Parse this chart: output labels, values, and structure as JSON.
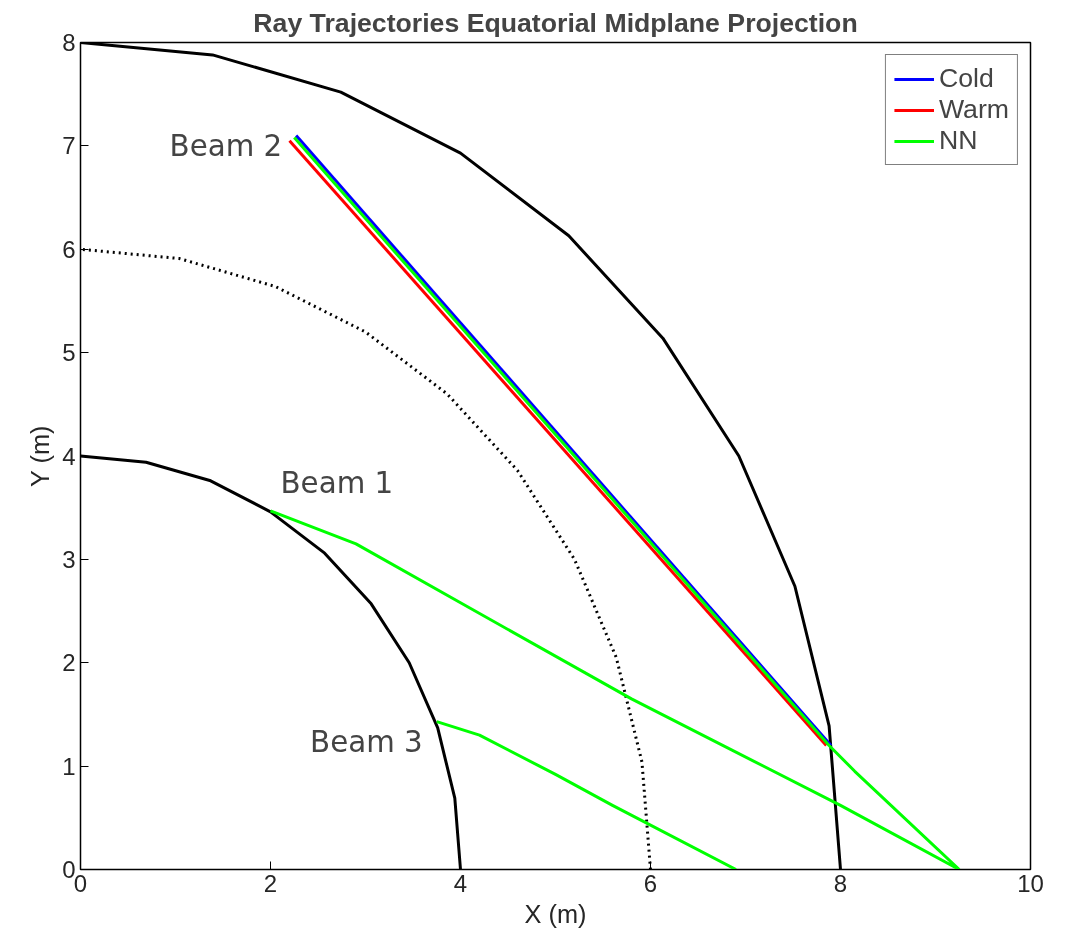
{
  "chart_data": {
    "type": "line",
    "title": "Ray Trajectories Equatorial Midplane Projection",
    "xlabel": "X (m)",
    "ylabel": "Y (m)",
    "xlim": [
      0,
      10
    ],
    "ylim": [
      0,
      8
    ],
    "xticks": [
      0,
      2,
      4,
      6,
      8,
      10
    ],
    "yticks": [
      0,
      1,
      2,
      3,
      4,
      5,
      6,
      7,
      8
    ],
    "grid": false,
    "legend": "top right",
    "line_style": "solid",
    "marker": "none",
    "series": [
      {
        "color": "#000000",
        "x": [
          4,
          3.94,
          3.76,
          3.46,
          3.06,
          2.57,
          2,
          1.37,
          0.69,
          0
        ],
        "values": [
          0,
          0.69,
          1.37,
          2,
          2.57,
          3.06,
          3.46,
          3.76,
          3.94,
          4
        ]
      },
      {
        "color": "#000000",
        "x": [
          8,
          7.88,
          7.52,
          6.93,
          6.13,
          5.14,
          4,
          2.74,
          1.39,
          0
        ],
        "values": [
          0,
          1.39,
          2.74,
          4,
          5.14,
          6.13,
          6.93,
          7.52,
          7.88,
          8
        ]
      },
      {
        "color": "#000000",
        "line_style": "dotted",
        "x": [
          6,
          5.91,
          5.64,
          5.2,
          4.6,
          3.86,
          3,
          2.05,
          1.04,
          0
        ],
        "values": [
          0,
          1.04,
          2.05,
          3,
          3.86,
          4.6,
          5.2,
          5.64,
          5.91,
          6
        ]
      },
      {
        "name": "Cold",
        "color": "#0000ff",
        "x": [
          2.27,
          7.9
        ],
        "values": [
          7.1,
          1.2
        ]
      },
      {
        "name": "Warm",
        "color": "#ff0000",
        "x": [
          2.2,
          7.85
        ],
        "values": [
          7.05,
          1.2
        ]
      },
      {
        "name": "NN",
        "color": "#00ff00",
        "x": [
          2.25,
          7.88,
          8.15,
          9.25,
          null,
          2.0,
          2.9,
          4,
          5.8,
          8,
          9.25,
          null,
          3.75,
          4.2,
          5,
          5.6,
          6.9
        ],
        "values": [
          7.08,
          1.2,
          0.95,
          0,
          null,
          3.47,
          3.15,
          2.58,
          1.65,
          0.62,
          0,
          null,
          1.43,
          1.3,
          0.92,
          0.62,
          0
        ]
      }
    ],
    "annotations": [
      {
        "text": "Beam 2",
        "x": 2.25,
        "y": 7.08
      },
      {
        "text": "Beam 1",
        "x": 2.0,
        "y": 3.47
      },
      {
        "text": "Beam 3",
        "x": 3.75,
        "y": 1.43
      }
    ]
  }
}
